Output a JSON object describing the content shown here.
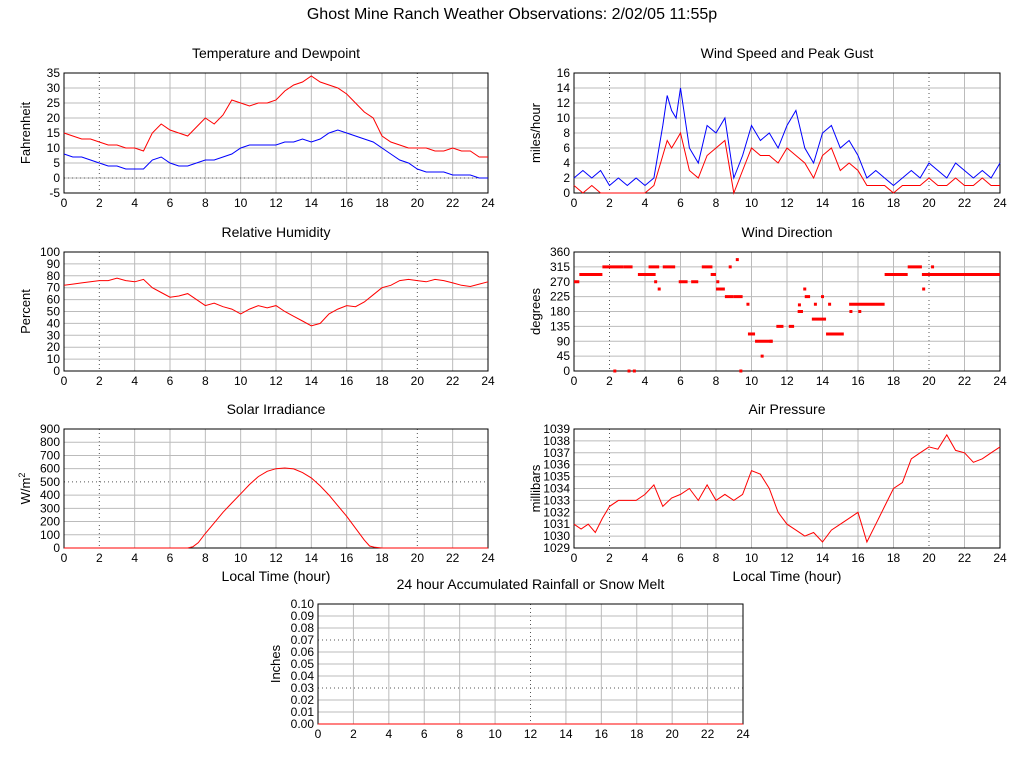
{
  "page_title": "Ghost Mine Ranch Weather Observations: 2/02/05 11:55p",
  "colors": {
    "red": "#ff0000",
    "blue": "#0000ff",
    "grid": "#bbbbbb",
    "frame": "#000000"
  },
  "chart_data": [
    {
      "id": "temp",
      "type": "line",
      "title": "Temperature and Dewpoint",
      "ylabel": "Fahrenheit",
      "xlabel": "",
      "xlim": [
        0,
        24
      ],
      "ylim": [
        -5,
        35
      ],
      "xticks": [
        0,
        2,
        4,
        6,
        8,
        10,
        12,
        14,
        16,
        18,
        20,
        22,
        24
      ],
      "yticks": [
        -5,
        0,
        5,
        10,
        15,
        20,
        25,
        30,
        35
      ],
      "series": [
        {
          "color": "#ff0000",
          "x": [
            0,
            0.5,
            1,
            1.5,
            2,
            2.5,
            3,
            3.5,
            4,
            4.5,
            5,
            5.5,
            6,
            6.5,
            7,
            7.5,
            8,
            8.5,
            9,
            9.5,
            10,
            10.5,
            11,
            11.5,
            12,
            12.5,
            13,
            13.5,
            14,
            14.5,
            15,
            15.5,
            16,
            16.5,
            17,
            17.5,
            18,
            18.5,
            19,
            19.5,
            20,
            20.5,
            21,
            21.5,
            22,
            22.5,
            23,
            23.5,
            24
          ],
          "y": [
            15,
            14,
            13,
            13,
            12,
            11,
            11,
            10,
            10,
            9,
            15,
            18,
            16,
            15,
            14,
            17,
            20,
            18,
            21,
            26,
            25,
            24,
            25,
            25,
            26,
            29,
            31,
            32,
            34,
            32,
            31,
            30,
            28,
            25,
            22,
            20,
            14,
            12,
            11,
            10,
            10,
            10,
            9,
            9,
            10,
            9,
            9,
            7,
            7
          ]
        },
        {
          "color": "#0000ff",
          "x": [
            0,
            0.5,
            1,
            1.5,
            2,
            2.5,
            3,
            3.5,
            4,
            4.5,
            5,
            5.5,
            6,
            6.5,
            7,
            7.5,
            8,
            8.5,
            9,
            9.5,
            10,
            10.5,
            11,
            11.5,
            12,
            12.5,
            13,
            13.5,
            14,
            14.5,
            15,
            15.5,
            16,
            16.5,
            17,
            17.5,
            18,
            18.5,
            19,
            19.5,
            20,
            20.5,
            21,
            21.5,
            22,
            22.5,
            23,
            23.5,
            24
          ],
          "y": [
            8,
            7,
            7,
            6,
            5,
            4,
            4,
            3,
            3,
            3,
            6,
            7,
            5,
            4,
            4,
            5,
            6,
            6,
            7,
            8,
            10,
            11,
            11,
            11,
            11,
            12,
            12,
            13,
            12,
            13,
            15,
            16,
            15,
            14,
            13,
            12,
            10,
            8,
            6,
            5,
            3,
            2,
            2,
            2,
            1,
            1,
            1,
            0,
            0
          ]
        }
      ]
    },
    {
      "id": "wind",
      "type": "line",
      "title": "Wind Speed and Peak Gust",
      "ylabel": "miles/hour",
      "xlabel": "",
      "xlim": [
        0,
        24
      ],
      "ylim": [
        0,
        16
      ],
      "xticks": [
        0,
        2,
        4,
        6,
        8,
        10,
        12,
        14,
        16,
        18,
        20,
        22,
        24
      ],
      "yticks": [
        0,
        2,
        4,
        6,
        8,
        10,
        12,
        14,
        16
      ],
      "series": [
        {
          "color": "#0000ff",
          "x": [
            0,
            0.5,
            1,
            1.5,
            2,
            2.5,
            3,
            3.5,
            4,
            4.5,
            5,
            5.25,
            5.5,
            5.75,
            6,
            6.5,
            7,
            7.5,
            8,
            8.5,
            9,
            9.5,
            10,
            10.5,
            11,
            11.5,
            12,
            12.5,
            13,
            13.5,
            14,
            14.5,
            15,
            15.5,
            16,
            16.5,
            17,
            17.5,
            18,
            18.5,
            19,
            19.5,
            20,
            20.5,
            21,
            21.5,
            22,
            22.5,
            23,
            23.5,
            24
          ],
          "y": [
            2,
            3,
            2,
            3,
            1,
            2,
            1,
            2,
            1,
            2,
            9,
            13,
            11,
            10,
            14,
            6,
            4,
            9,
            8,
            10,
            2,
            5,
            9,
            7,
            8,
            6,
            9,
            11,
            6,
            4,
            8,
            9,
            6,
            7,
            5,
            2,
            3,
            2,
            1,
            2,
            3,
            2,
            4,
            3,
            2,
            4,
            3,
            2,
            3,
            2,
            4
          ]
        },
        {
          "color": "#ff0000",
          "x": [
            0,
            0.5,
            1,
            1.5,
            2,
            2.5,
            3,
            3.5,
            4,
            4.5,
            5,
            5.25,
            5.5,
            5.75,
            6,
            6.5,
            7,
            7.5,
            8,
            8.5,
            9,
            9.5,
            10,
            10.5,
            11,
            11.5,
            12,
            12.5,
            13,
            13.5,
            14,
            14.5,
            15,
            15.5,
            16,
            16.5,
            17,
            17.5,
            18,
            18.5,
            19,
            19.5,
            20,
            20.5,
            21,
            21.5,
            22,
            22.5,
            23,
            23.5,
            24
          ],
          "y": [
            1,
            0,
            1,
            0,
            0,
            0,
            0,
            0,
            0,
            1,
            5,
            7,
            6,
            7,
            8,
            3,
            2,
            5,
            6,
            7,
            0,
            3,
            6,
            5,
            5,
            4,
            6,
            5,
            4,
            2,
            5,
            6,
            3,
            4,
            3,
            1,
            1,
            1,
            0,
            1,
            1,
            1,
            2,
            1,
            1,
            2,
            1,
            1,
            2,
            1,
            1
          ]
        }
      ]
    },
    {
      "id": "rh",
      "type": "line",
      "title": "Relative Humidity",
      "ylabel": "Percent",
      "xlabel": "",
      "xlim": [
        0,
        24
      ],
      "ylim": [
        0,
        100
      ],
      "xticks": [
        0,
        2,
        4,
        6,
        8,
        10,
        12,
        14,
        16,
        18,
        20,
        22,
        24
      ],
      "yticks": [
        0,
        10,
        20,
        30,
        40,
        50,
        60,
        70,
        80,
        90,
        100
      ],
      "series": [
        {
          "color": "#ff0000",
          "x": [
            0,
            0.5,
            1,
            1.5,
            2,
            2.5,
            3,
            3.5,
            4,
            4.5,
            5,
            5.5,
            6,
            6.5,
            7,
            7.5,
            8,
            8.5,
            9,
            9.5,
            10,
            10.5,
            11,
            11.5,
            12,
            12.5,
            13,
            13.5,
            14,
            14.5,
            15,
            15.5,
            16,
            16.5,
            17,
            17.5,
            18,
            18.5,
            19,
            19.5,
            20,
            20.5,
            21,
            21.5,
            22,
            22.5,
            23,
            23.5,
            24
          ],
          "y": [
            72,
            73,
            74,
            75,
            76,
            76,
            78,
            76,
            75,
            77,
            70,
            66,
            62,
            63,
            65,
            60,
            55,
            57,
            54,
            52,
            48,
            52,
            55,
            53,
            55,
            50,
            46,
            42,
            38,
            40,
            48,
            52,
            55,
            54,
            58,
            64,
            70,
            72,
            76,
            77,
            76,
            75,
            77,
            76,
            74,
            72,
            71,
            73,
            75
          ]
        }
      ]
    },
    {
      "id": "dir",
      "type": "scatter",
      "title": "Wind Direction",
      "ylabel": "degrees",
      "xlabel": "",
      "xlim": [
        0,
        24
      ],
      "ylim": [
        0,
        360
      ],
      "xticks": [
        0,
        2,
        4,
        6,
        8,
        10,
        12,
        14,
        16,
        18,
        20,
        22,
        24
      ],
      "yticks": [
        0,
        45,
        90,
        135,
        180,
        225,
        270,
        315,
        360
      ],
      "series": [
        {
          "color": "#ff0000",
          "segments": [
            [
              0,
              0.3,
              270
            ],
            [
              0.3,
              1.6,
              292
            ],
            [
              1.6,
              2.8,
              315
            ],
            [
              2.8,
              3.3,
              315
            ],
            [
              3.6,
              4.6,
              292
            ],
            [
              4.2,
              4.8,
              315
            ],
            [
              5,
              5.7,
              315
            ],
            [
              5.9,
              6.4,
              270
            ],
            [
              6.6,
              7.0,
              270
            ],
            [
              7.2,
              7.8,
              315
            ],
            [
              7.7,
              8.0,
              292
            ],
            [
              8.0,
              8.5,
              248
            ],
            [
              8.5,
              9.0,
              225
            ],
            [
              9.0,
              9.5,
              225
            ],
            [
              9.8,
              10.2,
              112
            ],
            [
              10.2,
              11.2,
              90
            ],
            [
              11.4,
              11.8,
              135
            ],
            [
              12.1,
              12.4,
              135
            ],
            [
              12.6,
              12.9,
              180
            ],
            [
              13.0,
              13.3,
              225
            ],
            [
              13.4,
              14.2,
              157
            ],
            [
              14.2,
              15.2,
              112
            ],
            [
              15.5,
              17.5,
              202
            ],
            [
              17.5,
              18.8,
              292
            ],
            [
              18.8,
              19.6,
              315
            ],
            [
              19.6,
              24,
              292
            ]
          ],
          "points": [
            [
              2.3,
              0
            ],
            [
              3.1,
              0
            ],
            [
              3.4,
              0
            ],
            [
              4.6,
              270
            ],
            [
              4.8,
              248
            ],
            [
              8.1,
              270
            ],
            [
              8.8,
              315
            ],
            [
              9.2,
              337
            ],
            [
              9.4,
              0
            ],
            [
              9.8,
              202
            ],
            [
              10.6,
              45
            ],
            [
              11.1,
              90
            ],
            [
              12.7,
              200
            ],
            [
              13.0,
              248
            ],
            [
              13.6,
              202
            ],
            [
              14.0,
              225
            ],
            [
              14.4,
              202
            ],
            [
              15.6,
              180
            ],
            [
              16.1,
              180
            ],
            [
              19.7,
              248
            ],
            [
              20.2,
              315
            ]
          ]
        }
      ]
    },
    {
      "id": "solar",
      "type": "line",
      "title": "Solar Irradiance",
      "ylabel": "W/m",
      "ylabel_sup": "2",
      "xlabel": "Local Time (hour)",
      "xlim": [
        0,
        24
      ],
      "ylim": [
        0,
        900
      ],
      "xticks": [
        0,
        2,
        4,
        6,
        8,
        10,
        12,
        14,
        16,
        18,
        20,
        22,
        24
      ],
      "yticks": [
        0,
        100,
        200,
        300,
        400,
        500,
        600,
        700,
        800,
        900
      ],
      "series": [
        {
          "color": "#ff0000",
          "x": [
            0,
            7.0,
            7.3,
            7.6,
            8,
            8.5,
            9,
            9.5,
            10,
            10.5,
            11,
            11.5,
            12,
            12.5,
            13,
            13.5,
            14,
            14.5,
            15,
            15.5,
            16,
            16.5,
            17,
            17.3,
            17.6,
            18,
            24
          ],
          "y": [
            0,
            0,
            10,
            40,
            110,
            190,
            270,
            340,
            410,
            480,
            540,
            580,
            600,
            605,
            598,
            570,
            530,
            470,
            400,
            320,
            240,
            150,
            60,
            15,
            5,
            0,
            0
          ]
        }
      ]
    },
    {
      "id": "pressure",
      "type": "line",
      "title": "Air Pressure",
      "ylabel": "millibars",
      "xlabel": "Local Time (hour)",
      "xlim": [
        0,
        24
      ],
      "ylim": [
        1029,
        1039
      ],
      "xticks": [
        0,
        2,
        4,
        6,
        8,
        10,
        12,
        14,
        16,
        18,
        20,
        22,
        24
      ],
      "yticks": [
        1029,
        1030,
        1031,
        1032,
        1033,
        1034,
        1035,
        1036,
        1037,
        1038,
        1039
      ],
      "series": [
        {
          "color": "#ff0000",
          "x": [
            0,
            0.4,
            0.8,
            1.2,
            1.6,
            2,
            2.5,
            3,
            3.5,
            4,
            4.5,
            5,
            5.5,
            6,
            6.5,
            7,
            7.5,
            8,
            8.5,
            9,
            9.5,
            10,
            10.5,
            11,
            11.5,
            12,
            12.5,
            13,
            13.5,
            14,
            14.5,
            15,
            15.5,
            16,
            16.5,
            17,
            17.5,
            18,
            18.5,
            19,
            19.5,
            20,
            20.5,
            21,
            21.5,
            22,
            22.5,
            23,
            23.5,
            24
          ],
          "y": [
            1031,
            1030.6,
            1031,
            1030.3,
            1031.5,
            1032.5,
            1033,
            1033,
            1033,
            1033.5,
            1034.3,
            1032.5,
            1033.2,
            1033.5,
            1034,
            1033,
            1034.3,
            1033,
            1033.5,
            1033,
            1033.5,
            1035.5,
            1035.2,
            1034,
            1032,
            1031,
            1030.5,
            1030,
            1030.3,
            1029.5,
            1030.5,
            1031,
            1031.5,
            1032,
            1029.5,
            1031,
            1032.5,
            1034,
            1034.5,
            1036.5,
            1037,
            1037.5,
            1037.3,
            1038.5,
            1037.2,
            1037,
            1036.2,
            1036.5,
            1037,
            1037.5
          ]
        }
      ]
    },
    {
      "id": "rain",
      "type": "line",
      "title": "24 hour Accumulated Rainfall or Snow Melt",
      "ylabel": "Inches",
      "xlabel": "",
      "xlim": [
        0,
        24
      ],
      "ylim": [
        0,
        0.1
      ],
      "xticks": [
        0,
        2,
        4,
        6,
        8,
        10,
        12,
        14,
        16,
        18,
        20,
        22,
        24
      ],
      "yticks": [
        "0.00",
        "0.01",
        "0.02",
        "0.03",
        "0.04",
        "0.05",
        "0.06",
        "0.07",
        "0.08",
        "0.09",
        "0.10"
      ],
      "series": [
        {
          "color": "#ff0000",
          "x": [
            0,
            24
          ],
          "y": [
            0,
            0
          ]
        }
      ]
    }
  ]
}
